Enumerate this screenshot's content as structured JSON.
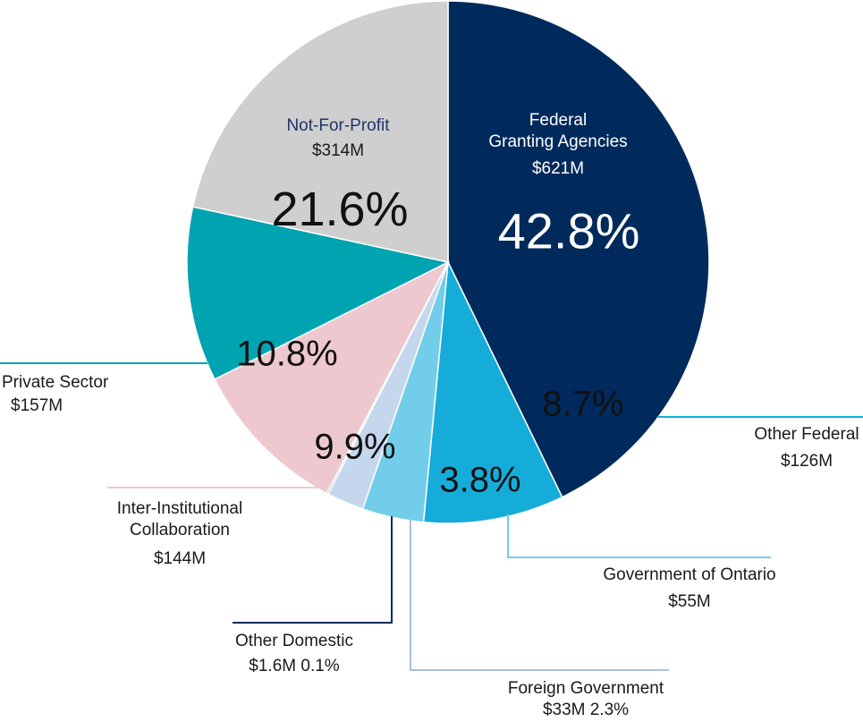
{
  "chart_data": {
    "type": "pie",
    "title": "",
    "slices": [
      {
        "label_lines": [
          "Federal",
          "Granting Agencies"
        ],
        "amount": "$621M",
        "percent_label": "42.8%",
        "value": 42.8,
        "color": "#002a5c"
      },
      {
        "label_lines": [
          "Other Federal"
        ],
        "amount": "$126M",
        "percent_label": "8.7%",
        "value": 8.7,
        "color": "#16acd9"
      },
      {
        "label_lines": [
          "Government of Ontario"
        ],
        "amount": "$55M",
        "percent_label": "3.8%",
        "value": 3.8,
        "color": "#72cdea"
      },
      {
        "label_lines": [
          "Foreign Government"
        ],
        "amount": "$33M 2.3%",
        "percent_label": "",
        "value": 2.3,
        "color": "#c5d7ec"
      },
      {
        "label_lines": [
          "Other Domestic"
        ],
        "amount": "$1.6M 0.1%",
        "percent_label": "",
        "value": 0.1,
        "color": "#002a5c"
      },
      {
        "label_lines": [
          "Inter-Institutional",
          "Collaboration"
        ],
        "amount": "$144M",
        "percent_label": "9.9%",
        "value": 9.9,
        "color": "#edc8ce"
      },
      {
        "label_lines": [
          "Private Sector"
        ],
        "amount": "$157M",
        "percent_label": "10.8%",
        "value": 10.8,
        "color": "#00a3b0"
      },
      {
        "label_lines": [
          "Not-For-Profit"
        ],
        "amount": "$314M",
        "percent_label": "21.6%",
        "value": 21.6,
        "color": "#cfcfcf"
      }
    ],
    "leader_colors": {
      "Other Federal": "#16acd9",
      "Government of Ontario": "#72cdea",
      "Foreign Government": "#a9c0e0",
      "Other Domestic": "#002a5c",
      "Inter-Institutional": "#edc8ce",
      "Private Sector": "#00a3b0"
    }
  }
}
